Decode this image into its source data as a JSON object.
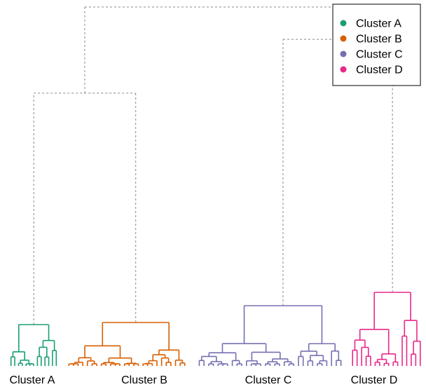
{
  "chart_data": {
    "type": "dendrogram",
    "title": "",
    "xlabel": "",
    "ylabel": "",
    "leaf_count": {
      "Cluster A": 13,
      "Cluster B": 26,
      "Cluster C": 31,
      "Cluster D": 16
    },
    "clusters": [
      {
        "name": "Cluster A",
        "color": "#1b9e77"
      },
      {
        "name": "Cluster B",
        "color": "#d95f02"
      },
      {
        "name": "Cluster C",
        "color": "#7570b3"
      },
      {
        "name": "Cluster D",
        "color": "#e7298a"
      }
    ],
    "upper_links": {
      "color": "#888888",
      "style": "dashed",
      "merges": [
        {
          "children": [
            "Cluster A",
            "Cluster B"
          ],
          "height": 0.76
        },
        {
          "children": [
            "Cluster C",
            "Cluster D"
          ],
          "height": 0.91
        },
        {
          "children": [
            "Cluster A+B",
            "Cluster C+D"
          ],
          "height": 1.0
        }
      ]
    },
    "legend": {
      "position": "top-right",
      "entries": [
        "Cluster A",
        "Cluster B",
        "Cluster C",
        "Cluster D"
      ]
    },
    "grid": false
  }
}
